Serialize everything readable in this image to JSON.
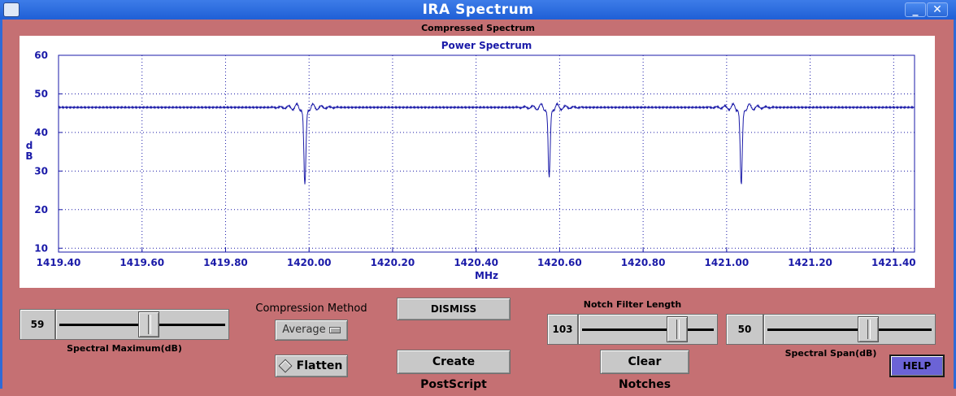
{
  "window": {
    "title": "IRA Spectrum",
    "minimize_glyph": "_",
    "close_glyph": "✕"
  },
  "panel": {
    "subtitle": "Compressed Spectrum"
  },
  "chart_data": {
    "type": "line",
    "title": "Power Spectrum",
    "xlabel": "MHz",
    "ylabel": "dB",
    "xlim": [
      1419.4,
      1421.45
    ],
    "ylim": [
      9,
      60
    ],
    "xticks": [
      "1419.40",
      "1419.60",
      "1419.80",
      "1420.00",
      "1420.20",
      "1420.40",
      "1420.60",
      "1420.80",
      "1421.00",
      "1421.20",
      "1421.40"
    ],
    "yticks": [
      "10",
      "20",
      "30",
      "40",
      "50",
      "60"
    ],
    "grid": true,
    "color": "#1a1aa8",
    "series": [
      {
        "name": "Power",
        "baseline": 46.5,
        "notches": [
          {
            "center_mhz": 1419.99,
            "min_db": 24.5,
            "peak_db": 48.4
          },
          {
            "center_mhz": 1420.575,
            "min_db": 26.5,
            "peak_db": 48.4
          },
          {
            "center_mhz": 1421.035,
            "min_db": 24.5,
            "peak_db": 48.4
          }
        ]
      }
    ]
  },
  "controls": {
    "spectral_max": {
      "label": "Spectral Maximum(dB)",
      "value": "59",
      "position": 0.54
    },
    "compression": {
      "label": "Compression Method",
      "selected": "Average"
    },
    "flatten": {
      "label": "Flatten"
    },
    "dismiss": {
      "label": "DISMISS"
    },
    "postscript": {
      "label": "Create PostScript"
    },
    "notch_filter": {
      "label": "Notch Filter Length",
      "value": "103",
      "position": 0.71
    },
    "clear_notches": {
      "label": "Clear Notches"
    },
    "spectral_span": {
      "label": "Spectral Span(dB)",
      "value": "50",
      "position": 0.61
    },
    "help": {
      "label": "HELP"
    }
  }
}
